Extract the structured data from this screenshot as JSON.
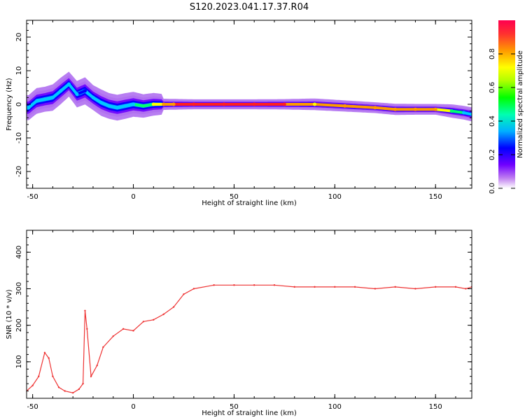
{
  "title": "S120.2023.041.17.37.R04",
  "chart_data": [
    {
      "type": "heatmap",
      "title": "S120.2023.041.17.37.R04",
      "xlabel": "Height of straight line (km)",
      "ylabel": "Frequency (Hz)",
      "xlim": [
        -53,
        168
      ],
      "ylim": [
        -25,
        25
      ],
      "x_ticks": [
        -50,
        0,
        50,
        100,
        150
      ],
      "y_ticks": [
        -20,
        -10,
        0,
        10,
        20
      ],
      "grid": false,
      "colormap": [
        "#f0d8f8",
        "#b070f0",
        "#6a00ff",
        "#0000ff",
        "#00c8ff",
        "#00ff70",
        "#ffff00",
        "#ff9900",
        "#ff2020"
      ],
      "colorbar": {
        "label": "Normalized spectral amplitude",
        "range": [
          0.0,
          1.0
        ],
        "ticks": [
          0.0,
          0.2,
          0.4,
          0.6,
          0.8
        ]
      },
      "ridge": [
        {
          "x": -52,
          "freq": -1.0,
          "amp": 0.55
        },
        {
          "x": -48,
          "freq": 1.0,
          "amp": 0.5
        },
        {
          "x": -44,
          "freq": 1.5,
          "amp": 0.55
        },
        {
          "x": -40,
          "freq": 2.0,
          "amp": 0.45
        },
        {
          "x": -36,
          "freq": 4.0,
          "amp": 0.45
        },
        {
          "x": -32,
          "freq": 6.0,
          "amp": 0.55
        },
        {
          "x": -28,
          "freq": 3.0,
          "amp": 0.45
        },
        {
          "x": -24,
          "freq": 4.0,
          "amp": 0.4
        },
        {
          "x": -20,
          "freq": 2.0,
          "amp": 0.55
        },
        {
          "x": -16,
          "freq": 0.5,
          "amp": 0.45
        },
        {
          "x": -12,
          "freq": -0.5,
          "amp": 0.5
        },
        {
          "x": -8,
          "freq": -1.0,
          "amp": 0.5
        },
        {
          "x": -4,
          "freq": -0.5,
          "amp": 0.5
        },
        {
          "x": 0,
          "freq": 0.0,
          "amp": 0.55
        },
        {
          "x": 5,
          "freq": -0.5,
          "amp": 0.65
        },
        {
          "x": 10,
          "freq": 0.0,
          "amp": 0.7
        },
        {
          "x": 15,
          "freq": 0.0,
          "amp": 0.85
        },
        {
          "x": 20,
          "freq": 0.0,
          "amp": 0.9
        },
        {
          "x": 30,
          "freq": 0.0,
          "amp": 1.0
        },
        {
          "x": 45,
          "freq": 0.0,
          "amp": 1.0
        },
        {
          "x": 60,
          "freq": 0.0,
          "amp": 1.0
        },
        {
          "x": 75,
          "freq": 0.0,
          "amp": 0.95
        },
        {
          "x": 90,
          "freq": 0.0,
          "amp": 0.8
        },
        {
          "x": 105,
          "freq": -0.5,
          "amp": 0.85
        },
        {
          "x": 120,
          "freq": -1.0,
          "amp": 0.9
        },
        {
          "x": 130,
          "freq": -1.5,
          "amp": 0.85
        },
        {
          "x": 140,
          "freq": -1.5,
          "amp": 0.9
        },
        {
          "x": 150,
          "freq": -1.5,
          "amp": 0.9
        },
        {
          "x": 158,
          "freq": -2.0,
          "amp": 0.6
        },
        {
          "x": 164,
          "freq": -2.5,
          "amp": 0.55
        },
        {
          "x": 168,
          "freq": -3.0,
          "amp": 0.5
        }
      ]
    },
    {
      "type": "line",
      "xlabel": "Height of straight line (km)",
      "ylabel": "SNR (10 * v/v)",
      "xlim": [
        -53,
        168
      ],
      "ylim": [
        0,
        460
      ],
      "x_ticks": [
        -50,
        0,
        50,
        100,
        150
      ],
      "y_ticks": [
        100,
        200,
        300,
        400
      ],
      "grid": false,
      "color": "#ee3333",
      "series": [
        {
          "x": [
            -53,
            -50,
            -47,
            -44,
            -42,
            -40,
            -37,
            -34,
            -30,
            -27,
            -25,
            -24,
            -23,
            -21,
            -18,
            -15,
            -10,
            -5,
            0,
            5,
            10,
            15,
            20,
            25,
            30,
            40,
            50,
            60,
            70,
            80,
            90,
            100,
            110,
            120,
            130,
            140,
            150,
            160,
            165,
            168
          ],
          "values": [
            20,
            35,
            60,
            125,
            110,
            60,
            30,
            20,
            15,
            25,
            40,
            240,
            190,
            60,
            90,
            140,
            170,
            190,
            185,
            210,
            215,
            230,
            250,
            285,
            300,
            310,
            310,
            310,
            310,
            305,
            305,
            305,
            305,
            300,
            305,
            300,
            305,
            305,
            300,
            305
          ]
        }
      ]
    }
  ]
}
